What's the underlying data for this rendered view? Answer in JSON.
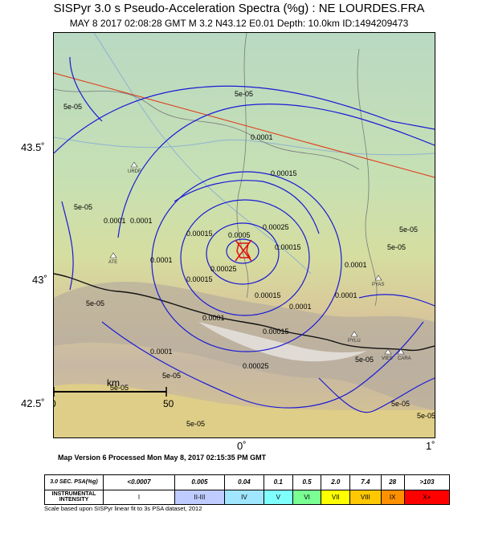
{
  "header": {
    "title": "SISPyr 3.0 s Pseudo-Acceleration Spectra (%g) : NE LOURDES.FRA",
    "subtitle": "MAY 8 2017 02:08:28  GMT   M 3.2   N43.12 E0.01   Depth: 10.0km   ID:1494209473"
  },
  "axes": {
    "lat_labels": [
      "43.5˚",
      "43˚",
      "42.5˚"
    ],
    "lon_labels": [
      "0˚",
      "1˚"
    ]
  },
  "map": {
    "scale_label": "km",
    "scale_ticks": [
      "0",
      "50"
    ],
    "contour_labels": [
      "5e-05",
      "5e-05",
      "0.0001",
      "0.00015",
      "0.0001",
      "0.0001",
      "0.00015",
      "0.00025",
      "0.00015",
      "0.0005",
      "0.00025",
      "0.00015",
      "0.00015",
      "0.0001",
      "0.0001",
      "5e-05",
      "0.0001",
      "0.0001",
      "0.00015",
      "0.00025",
      "0.0001",
      "5e-05",
      "5e-05",
      "5e-05",
      "5e-05",
      "0.0001",
      "5e-05",
      "5e-05",
      "5e-05",
      "5e-05",
      "5e-05"
    ],
    "stations": [
      "URDF",
      "ATE",
      "PYAS",
      "PYLU",
      "VIES",
      "CARA"
    ],
    "colors": {
      "contour": "#1a1ad6",
      "fault": "#e04020",
      "epicenter": "#e01010",
      "border": "#111111"
    }
  },
  "footer": {
    "version": "Map Version 6 Processed Mon May  8, 2017 02:15:35 PM GMT",
    "scale_note": "Scale based upon SISPyr linear fit to 3s PSA dataset, 2012"
  },
  "legend": {
    "psa_header": "3.0 SEC. PSA(%g)",
    "intensity_header": "INSTRUMENTAL INTENSITY",
    "psa_values": [
      "<0.0007",
      "0.005",
      "0.04",
      "0.1",
      "0.5",
      "2.0",
      "7.4",
      "28",
      ">103"
    ],
    "intensities": [
      "I",
      "II-III",
      "IV",
      "V",
      "VI",
      "VII",
      "VIII",
      "IX",
      "X+"
    ],
    "colors": [
      "#ffffff",
      "#bfccff",
      "#a0e6ff",
      "#80ffff",
      "#7aff93",
      "#ffff00",
      "#ffc800",
      "#ff9100",
      "#ff0000"
    ]
  }
}
